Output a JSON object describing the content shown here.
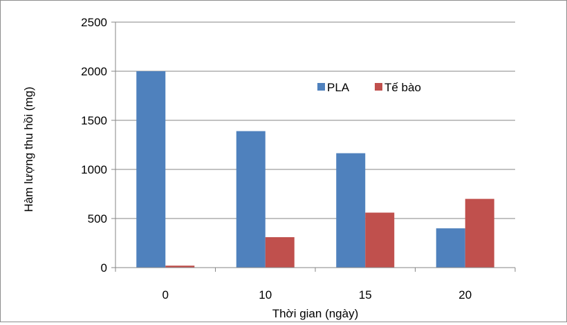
{
  "chart_data": {
    "type": "bar",
    "title": "",
    "xlabel": "Thời gian (ngày)",
    "ylabel": "Hàm lượng thu hồi (mg)",
    "categories": [
      "0",
      "10",
      "15",
      "20"
    ],
    "ylim": [
      0,
      2500
    ],
    "yticks": [
      0,
      500,
      1000,
      1500,
      2000,
      2500
    ],
    "grid": true,
    "legend_position": "inside-top-right",
    "series": [
      {
        "name": "PLA",
        "values": [
          2000,
          1390,
          1165,
          400
        ],
        "color": "#4f81bd"
      },
      {
        "name": "Tế bào",
        "values": [
          20,
          310,
          560,
          700
        ],
        "color": "#c0504d"
      }
    ]
  }
}
